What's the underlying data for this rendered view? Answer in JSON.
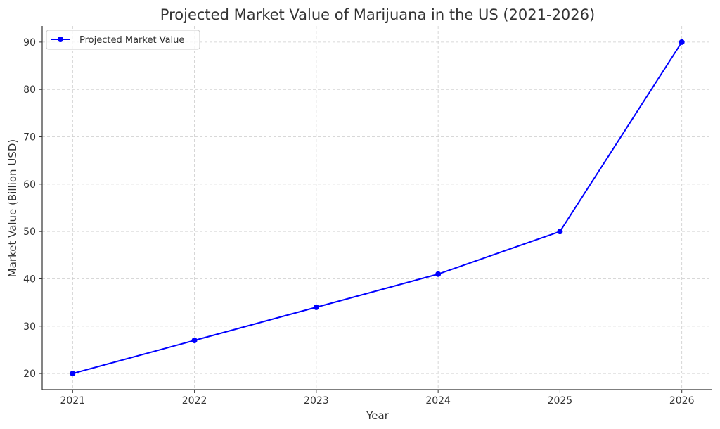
{
  "chart_data": {
    "type": "line",
    "title": "Projected Market Value of Marijuana in the US (2021-2026)",
    "xlabel": "Year",
    "ylabel": "Market Value (Billion USD)",
    "x": [
      2021,
      2022,
      2023,
      2024,
      2025,
      2026
    ],
    "xtick_labels": [
      "2021",
      "2022",
      "2023",
      "2024",
      "2025",
      "2026"
    ],
    "ytick_labels": [
      "20",
      "30",
      "40",
      "50",
      "60",
      "70",
      "80",
      "90"
    ],
    "yticks": [
      20,
      30,
      40,
      50,
      60,
      70,
      80,
      90
    ],
    "ylim": [
      16.6,
      93.4
    ],
    "xlim": [
      2020.75,
      2026.25
    ],
    "grid": true,
    "legend_position": "top-left",
    "series": [
      {
        "name": "Projected Market Value",
        "values": [
          20,
          27,
          34,
          41,
          50,
          90
        ],
        "color": "#0000ff",
        "marker": "circle"
      }
    ]
  }
}
